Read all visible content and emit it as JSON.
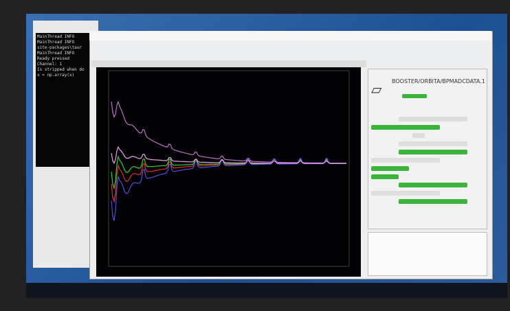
{
  "terminal": {
    "lines": [
      "MainThread   INFO",
      "MainThread   INFO",
      "site-packages\\taur",
      "MainThread   INFO",
      "Ready pressed",
      "Channel: 1",
      "Is stripped when do",
      "x = np.array(x)"
    ]
  },
  "panel": {
    "title": "BOOSTER/ORBITA/BPMADCDATA.1"
  }
}
